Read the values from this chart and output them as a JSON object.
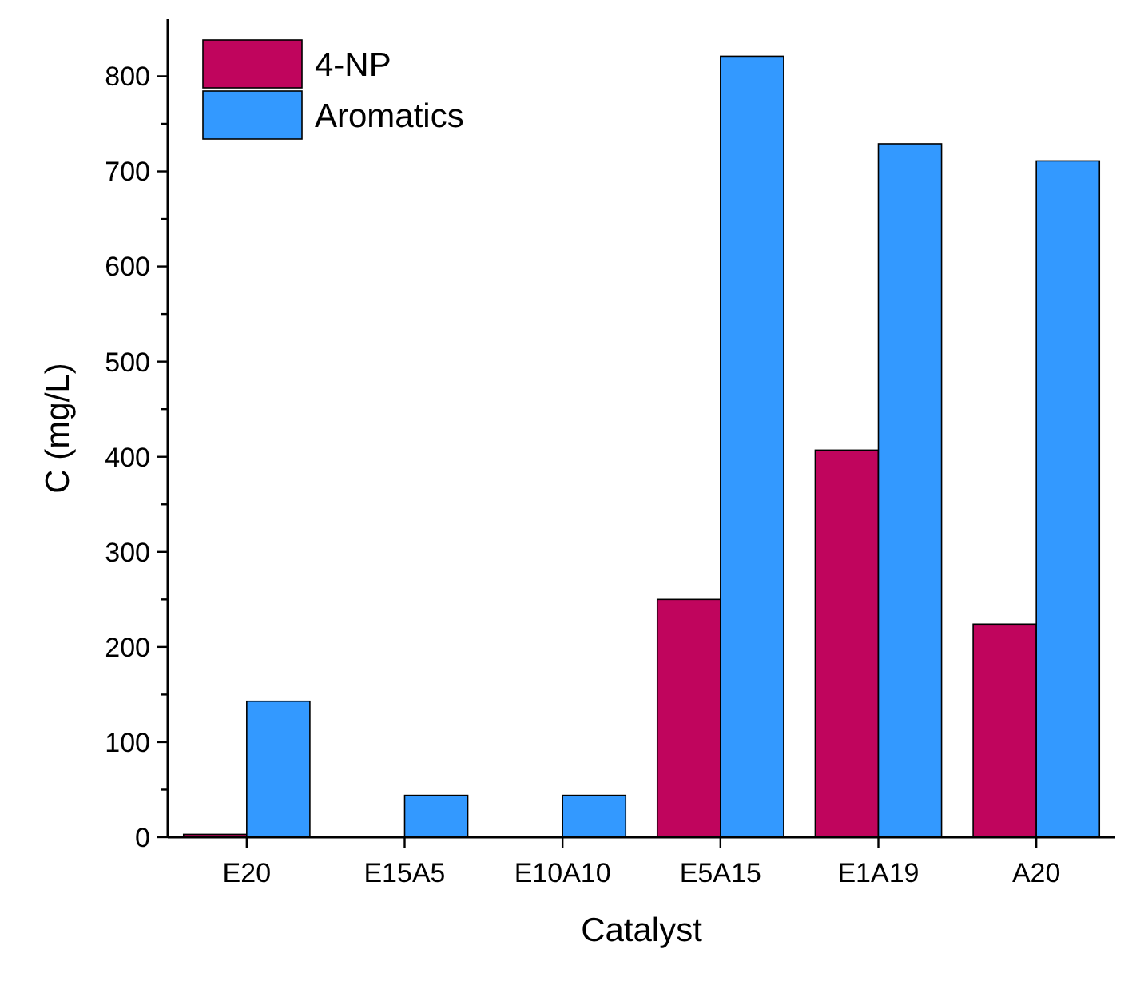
{
  "chart_data": {
    "type": "bar",
    "xlabel": "Catalyst",
    "ylabel": "C (mg/L)",
    "categories": [
      "E20",
      "E15A5",
      "E10A10",
      "E5A15",
      "E1A19",
      "A20"
    ],
    "series": [
      {
        "name": "4-NP",
        "color": "#c0055d",
        "values": [
          3,
          0,
          0,
          250,
          407,
          224
        ]
      },
      {
        "name": "Aromatics",
        "color": "#3399ff",
        "values": [
          143,
          44,
          44,
          821,
          729,
          711
        ]
      }
    ],
    "ylim": [
      0,
      860
    ],
    "yticks": [
      0,
      {
        "value": 50,
        "label": null
      },
      100,
      {
        "value": 150,
        "label": null
      },
      200,
      {
        "value": 250,
        "label": null
      },
      300,
      {
        "value": 350,
        "label": null
      },
      400,
      {
        "value": 450,
        "label": null
      },
      500,
      {
        "value": 550,
        "label": null
      },
      600,
      {
        "value": 650,
        "label": null
      },
      700,
      {
        "value": 750,
        "label": null
      },
      800
    ],
    "grid": false,
    "legend": "top left"
  }
}
